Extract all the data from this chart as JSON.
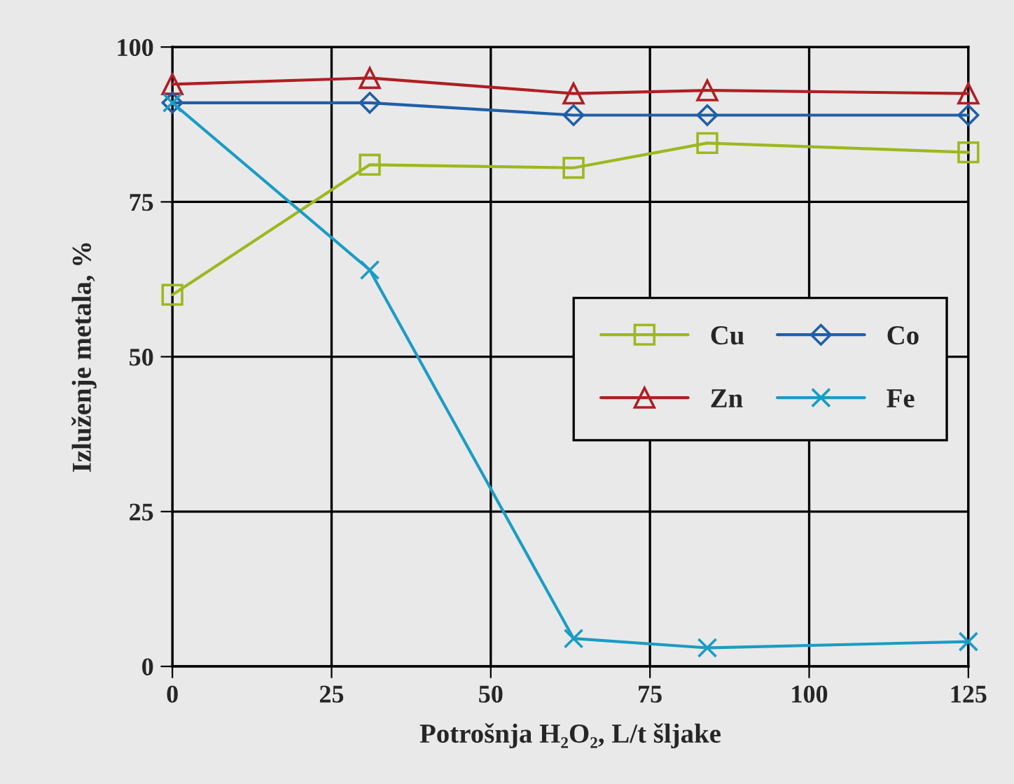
{
  "chart_data": {
    "type": "line",
    "xlabel": "Potrošnja H₂O₂, L/t šljake",
    "ylabel": "Izluženje metala, %",
    "x": [
      0,
      31,
      63,
      84,
      125
    ],
    "series": [
      {
        "name": "Cu",
        "color": "#9cb81e",
        "marker": "square",
        "values": [
          60,
          81,
          80.5,
          84.5,
          83
        ]
      },
      {
        "name": "Zn",
        "color": "#b01e23",
        "marker": "triangle",
        "values": [
          94,
          95,
          92.5,
          93,
          92.5
        ]
      },
      {
        "name": "Co",
        "color": "#1f5fa8",
        "marker": "diamond",
        "values": [
          91,
          91,
          89,
          89,
          89
        ]
      },
      {
        "name": "Fe",
        "color": "#1a9cc4",
        "marker": "cross",
        "values": [
          91,
          64,
          4.5,
          3,
          4
        ]
      }
    ],
    "xlim": [
      0,
      125
    ],
    "ylim": [
      0,
      100
    ],
    "xticks": [
      0,
      25,
      50,
      75,
      100,
      125
    ],
    "yticks": [
      0,
      25,
      50,
      75,
      100
    ],
    "grid": true,
    "legend": "right",
    "line_style": "solid"
  }
}
